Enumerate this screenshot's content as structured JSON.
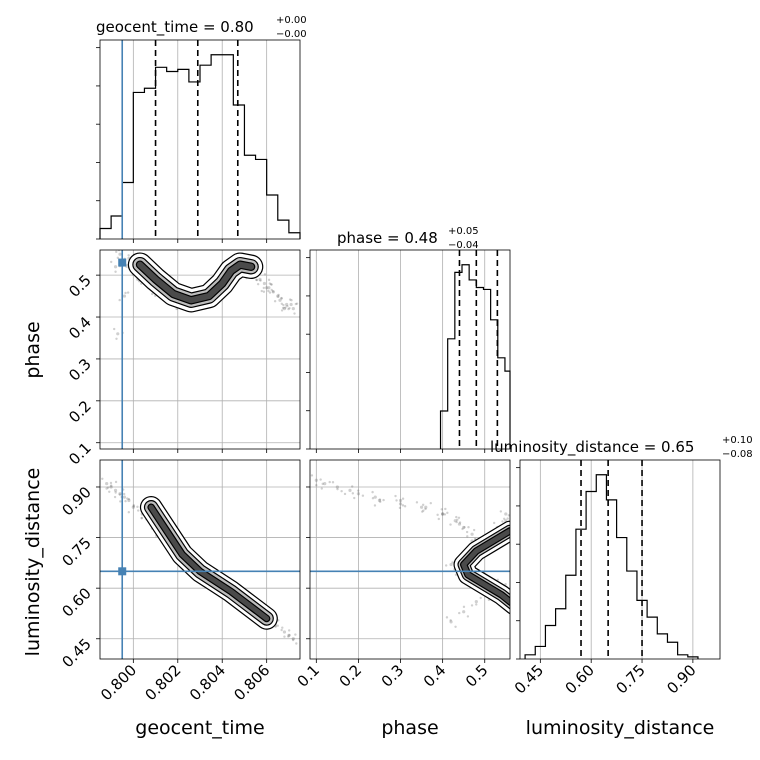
{
  "chart_data": {
    "type": "corner",
    "parameters": [
      "geocent_time",
      "phase",
      "luminosity_distance"
    ],
    "truth_color": "#4682b4",
    "truths": {
      "geocent_time": 0.7995,
      "phase": 0.57,
      "luminosity_distance": 0.65
    },
    "titles": [
      {
        "param": "geocent_time",
        "main": "geocent_time = 0.80",
        "plus": "+0.00",
        "minus": "−0.00"
      },
      {
        "param": "phase",
        "main": "phase = 0.48",
        "plus": "+0.05",
        "minus": "−0.04"
      },
      {
        "param": "luminosity_distance",
        "main": "luminosity_distance = 0.65",
        "plus": "+0.10",
        "minus": "−0.08"
      }
    ],
    "axes": {
      "geocent_time": {
        "range": [
          0.7985,
          0.8075
        ],
        "ticks": [
          0.8,
          0.802,
          0.804,
          0.806
        ],
        "tick_labels": [
          "0.800",
          "0.802",
          "0.804",
          "0.806"
        ],
        "label": "geocent_time"
      },
      "phase": {
        "range": [
          0.085,
          0.56
        ],
        "ticks": [
          0.1,
          0.2,
          0.3,
          0.4,
          0.5
        ],
        "tick_labels": [
          "0.1",
          "0.2",
          "0.3",
          "0.4",
          "0.5"
        ],
        "label": "phase"
      },
      "luminosity_distance": {
        "range": [
          0.39,
          0.98
        ],
        "ticks": [
          0.45,
          0.6,
          0.75,
          0.9
        ],
        "tick_labels": [
          "0.45",
          "0.60",
          "0.75",
          "0.90"
        ],
        "label": "luminosity_distance"
      }
    },
    "histograms": {
      "geocent_time": {
        "bin_edges": [
          0.7985,
          0.799,
          0.7995,
          0.8,
          0.8005,
          0.801,
          0.8015,
          0.802,
          0.8025,
          0.803,
          0.8035,
          0.804,
          0.8045,
          0.805,
          0.8055,
          0.806,
          0.8065,
          0.807,
          0.8075
        ],
        "counts": [
          5,
          11,
          27,
          70,
          72,
          82,
          80,
          81,
          75,
          83,
          88,
          88,
          64,
          40,
          38,
          21,
          9,
          3
        ],
        "quantiles": [
          0.801,
          0.8029,
          0.8047
        ]
      },
      "phase": {
        "bin_edges": [
          0.395,
          0.412,
          0.429,
          0.446,
          0.463,
          0.48,
          0.497,
          0.514,
          0.531,
          0.548,
          0.565
        ],
        "counts": [
          20,
          58,
          93,
          97,
          89,
          85,
          84,
          68,
          48,
          41
        ],
        "quantiles": [
          0.44,
          0.48,
          0.53
        ]
      },
      "luminosity_distance": {
        "bin_edges": [
          0.405,
          0.435,
          0.465,
          0.495,
          0.525,
          0.555,
          0.585,
          0.615,
          0.645,
          0.675,
          0.705,
          0.735,
          0.765,
          0.795,
          0.825,
          0.855,
          0.885,
          0.915
        ],
        "counts": [
          1,
          3,
          8,
          12,
          20,
          31,
          40,
          44,
          38,
          29,
          21,
          14,
          10,
          6,
          4,
          1,
          0.5
        ],
        "quantiles": [
          0.57,
          0.65,
          0.75
        ]
      }
    },
    "samples_2d": {
      "geocent_time_vs_phase": {
        "x": [
          0.7992,
          0.7995,
          0.7998,
          0.8,
          0.8003,
          0.8006,
          0.8009,
          0.8012,
          0.8015,
          0.8018,
          0.8021,
          0.8024,
          0.8027,
          0.803,
          0.8033,
          0.8036,
          0.8039,
          0.8042,
          0.8045,
          0.8048,
          0.8051,
          0.8054,
          0.8057,
          0.806,
          0.8063,
          0.8066,
          0.8069,
          0.8072,
          0.7994,
          0.7999,
          0.8004,
          0.8011,
          0.8017,
          0.8023,
          0.8029,
          0.8035,
          0.8041,
          0.8047,
          0.8053,
          0.8059,
          0.8065,
          0.8071,
          0.7996,
          0.7993,
          0.8002,
          0.801,
          0.802,
          0.803,
          0.804,
          0.805,
          0.8061,
          0.8068
        ],
        "y": [
          0.52,
          0.53,
          0.54,
          0.53,
          0.51,
          0.5,
          0.48,
          0.46,
          0.45,
          0.44,
          0.43,
          0.435,
          0.43,
          0.44,
          0.445,
          0.46,
          0.48,
          0.5,
          0.515,
          0.52,
          0.515,
          0.5,
          0.49,
          0.47,
          0.46,
          0.44,
          0.43,
          0.42,
          0.55,
          0.52,
          0.495,
          0.47,
          0.445,
          0.43,
          0.44,
          0.45,
          0.49,
          0.52,
          0.505,
          0.48,
          0.45,
          0.43,
          0.45,
          0.36,
          0.49,
          0.465,
          0.44,
          0.435,
          0.47,
          0.51,
          0.47,
          0.42
        ]
      },
      "geocent_time_vs_luminosity_distance": {
        "x": [
          0.7988,
          0.7992,
          0.7996,
          0.8,
          0.8004,
          0.8008,
          0.8012,
          0.8016,
          0.802,
          0.8024,
          0.8028,
          0.8032,
          0.8036,
          0.804,
          0.8044,
          0.8048,
          0.8052,
          0.8056,
          0.806,
          0.8064,
          0.8068,
          0.8072,
          0.799,
          0.7994,
          0.7998,
          0.8006,
          0.8014,
          0.8022,
          0.803,
          0.8038,
          0.8046,
          0.8054,
          0.8062,
          0.807
        ],
        "y": [
          0.91,
          0.89,
          0.87,
          0.84,
          0.82,
          0.79,
          0.77,
          0.74,
          0.71,
          0.69,
          0.66,
          0.64,
          0.62,
          0.61,
          0.59,
          0.57,
          0.55,
          0.53,
          0.51,
          0.49,
          0.47,
          0.45,
          0.9,
          0.88,
          0.86,
          0.81,
          0.76,
          0.7,
          0.65,
          0.62,
          0.58,
          0.54,
          0.5,
          0.46
        ]
      },
      "phase_vs_luminosity_distance": {
        "x": [
          0.1,
          0.15,
          0.2,
          0.25,
          0.3,
          0.35,
          0.4,
          0.43,
          0.45,
          0.47,
          0.49,
          0.51,
          0.53,
          0.55,
          0.12,
          0.18,
          0.24,
          0.3,
          0.36,
          0.4,
          0.44,
          0.47,
          0.5,
          0.53,
          0.55,
          0.42,
          0.44,
          0.46,
          0.48,
          0.5,
          0.52,
          0.54,
          0.42,
          0.45,
          0.48,
          0.51,
          0.54
        ],
        "y": [
          0.92,
          0.9,
          0.88,
          0.86,
          0.85,
          0.84,
          0.82,
          0.8,
          0.78,
          0.74,
          0.72,
          0.73,
          0.78,
          0.82,
          0.91,
          0.89,
          0.87,
          0.86,
          0.84,
          0.82,
          0.79,
          0.76,
          0.73,
          0.77,
          0.8,
          0.67,
          0.65,
          0.64,
          0.63,
          0.62,
          0.61,
          0.6,
          0.5,
          0.53,
          0.56,
          0.58,
          0.55
        ]
      }
    },
    "contour_levels_description": "density contours shown as grey filled regions with black outlines"
  }
}
